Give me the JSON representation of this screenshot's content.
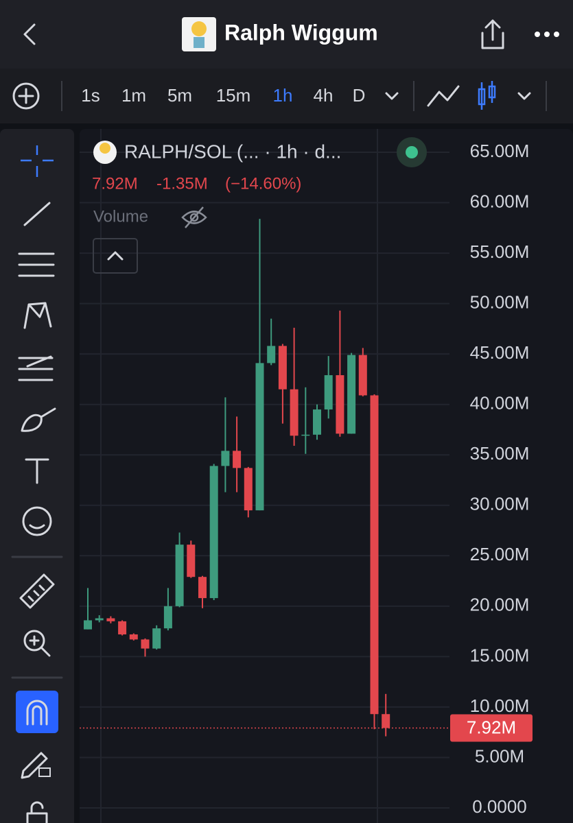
{
  "header": {
    "title": "Ralph Wiggum"
  },
  "toolbar": {
    "intervals": [
      "1s",
      "1m",
      "5m",
      "15m",
      "1h",
      "4h",
      "D"
    ],
    "active": "1h"
  },
  "legend": {
    "symbol": "RALPH/SOL (... · 1h · d...",
    "last": "7.92M",
    "change": "-1.35M",
    "change_pct": "(−14.60%)",
    "volume": "Volume"
  },
  "chart_data": {
    "type": "candlestick",
    "up_color": "#3e9b7e",
    "down_color": "#e3474d",
    "open": [
      17.7,
      18.6,
      18.8,
      18.5,
      17.2,
      16.7,
      15.8,
      17.8,
      20.0,
      26.1,
      22.9,
      20.8,
      33.9,
      35.4,
      33.7,
      29.5,
      44.1,
      45.8,
      41.5,
      36.9,
      37.0,
      39.5,
      42.9,
      37.1,
      44.9,
      40.9,
      9.3
    ],
    "high": [
      21.8,
      19.1,
      19.0,
      18.6,
      17.3,
      16.8,
      18.1,
      21.8,
      27.3,
      26.5,
      23.0,
      34.1,
      40.7,
      38.8,
      33.8,
      58.4,
      48.5,
      46.0,
      47.6,
      41.7,
      40.0,
      44.8,
      49.3,
      45.1,
      45.6,
      41.0,
      11.3
    ],
    "low": [
      17.7,
      18.4,
      18.3,
      17.1,
      16.6,
      15.0,
      15.7,
      17.6,
      19.9,
      22.8,
      19.8,
      20.6,
      31.3,
      31.3,
      28.8,
      29.5,
      43.9,
      38.1,
      35.9,
      35.1,
      36.5,
      38.6,
      36.8,
      37.1,
      40.8,
      7.8,
      7.1
    ],
    "close": [
      18.6,
      18.8,
      18.5,
      17.2,
      16.7,
      15.8,
      17.8,
      20.0,
      26.1,
      22.9,
      20.8,
      33.9,
      35.4,
      33.7,
      29.5,
      44.1,
      45.8,
      41.5,
      36.9,
      37.0,
      39.5,
      42.9,
      37.1,
      44.9,
      40.9,
      9.3,
      7.92
    ],
    "last_price": {
      "value": 7.92,
      "label": "7.92M"
    },
    "ylim": [
      0,
      65
    ],
    "yticks": [
      {
        "value": 0,
        "label": "0.0000"
      },
      {
        "value": 5,
        "label": "5.00M"
      },
      {
        "value": 10,
        "label": "10.00M"
      },
      {
        "value": 15,
        "label": "15.00M"
      },
      {
        "value": 20,
        "label": "20.00M"
      },
      {
        "value": 25,
        "label": "25.00M"
      },
      {
        "value": 30,
        "label": "30.00M"
      },
      {
        "value": 35,
        "label": "35.00M"
      },
      {
        "value": 40,
        "label": "40.00M"
      },
      {
        "value": 45,
        "label": "45.00M"
      },
      {
        "value": 50,
        "label": "50.00M"
      },
      {
        "value": 55,
        "label": "55.00M"
      },
      {
        "value": 60,
        "label": "60.00M"
      },
      {
        "value": 65,
        "label": "65.00M"
      }
    ],
    "grid": true
  }
}
